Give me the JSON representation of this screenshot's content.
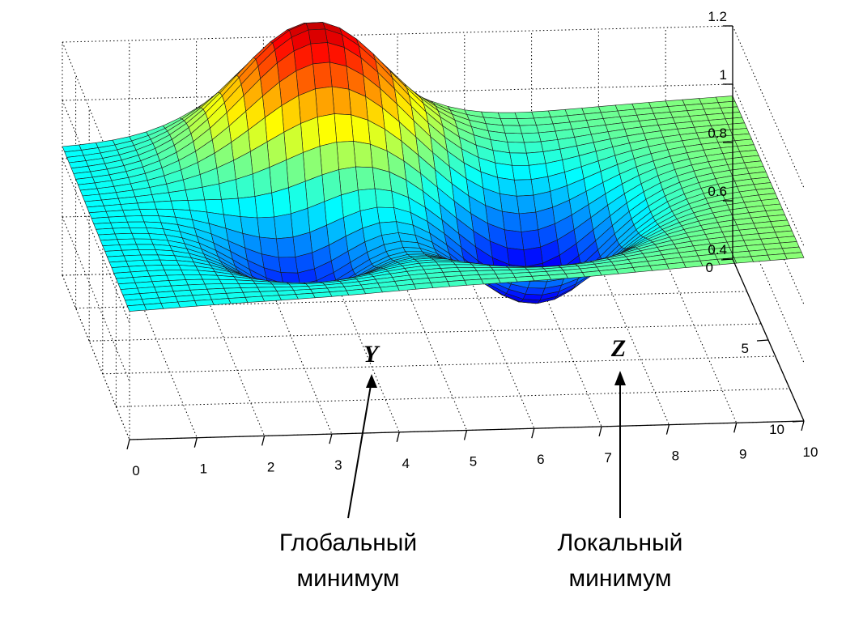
{
  "chart_data": {
    "type": "surface",
    "title": "",
    "x_ticks": [
      "10",
      "9",
      "8",
      "7",
      "6",
      "5",
      "4",
      "3",
      "2",
      "1",
      "0"
    ],
    "y_ticks": [
      "0",
      "5",
      "10"
    ],
    "z_ticks": [
      "1.2",
      "1",
      "0.8",
      "0.6",
      "0.4"
    ],
    "xlim": [
      0,
      10
    ],
    "ylim": [
      0,
      10
    ],
    "zlim": [
      0.4,
      1.2
    ],
    "grid": true,
    "colormap": "jet",
    "baseline": 0.5,
    "features": [
      {
        "name": "global-minimum",
        "x": 6.5,
        "y": 5,
        "z": 0.2
      },
      {
        "name": "local-minimum",
        "x": 3,
        "y": 5,
        "z": 0.3
      },
      {
        "name": "maximum",
        "x": 3.6,
        "y": 1.5,
        "z": 0.98
      }
    ],
    "annotations": [
      {
        "label": "Y",
        "caption": [
          "Глобальный",
          "минимум"
        ]
      },
      {
        "label": "Z",
        "caption": [
          "Локальный",
          "минимум"
        ]
      }
    ]
  },
  "colors": {
    "grid": "#000000",
    "mesh": "#1a1a1a"
  }
}
